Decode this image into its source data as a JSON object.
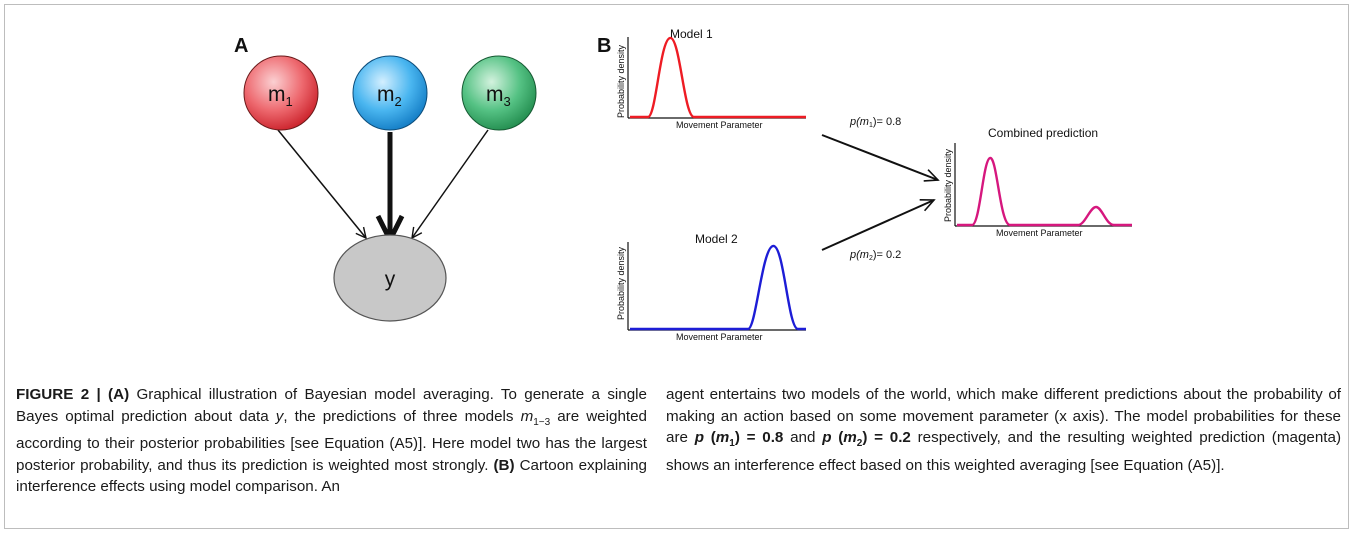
{
  "panel_a": {
    "label": "A",
    "nodes": [
      {
        "name": "m",
        "sub": "1",
        "color": "#e8414a"
      },
      {
        "name": "m",
        "sub": "2",
        "color": "#1ea1e8"
      },
      {
        "name": "m",
        "sub": "3",
        "color": "#2eaa63"
      }
    ],
    "target": "y",
    "target_color": "#c8c8c8"
  },
  "panel_b": {
    "label": "B",
    "model1": {
      "title": "Model 1",
      "ylabel": "Probability density",
      "xlabel": "Movement Parameter",
      "color": "#ee1c24"
    },
    "model2": {
      "title": "Model 2",
      "ylabel": "Probability density",
      "xlabel": "Movement Parameter",
      "color": "#1d1dd6"
    },
    "combined": {
      "title": "Combined prediction",
      "ylabel": "Probability density",
      "xlabel": "Movement Parameter",
      "color": "#d6177e"
    },
    "weight1": {
      "p": "p(m",
      "sub": "1",
      "rest": ")= 0.8"
    },
    "weight2": {
      "p": "p(m",
      "sub": "2",
      "rest": ")= 0.2"
    }
  },
  "caption": {
    "figure_label": "FIGURE 2 | ",
    "a_label": "(A)",
    "t1": " Graphical illustration of Bayesian model averaging. To generate a single Bayes optimal prediction about data ",
    "y": "y",
    "t2": ", the predictions of three models ",
    "m": "m",
    "m_sub": "1−3",
    "t3": " are weighted according to their posterior probabilities [see Equation (A5)]. Here model two has the largest posterior probability, and thus its prediction is weighted most strongly. ",
    "b_label": "(B)",
    "t4": " Cartoon explaining interference effects using model comparison. An",
    "t5": "agent entertains two models of the world, which make different predictions about the probability of making an action based on some movement parameter (x axis). The model probabilities for these are ",
    "eq1_p": "p",
    "eq1_m": "m",
    "eq1_sub": "1",
    "eq1_val": "0.8",
    "and": " and ",
    "eq2_p": "p",
    "eq2_m": "m",
    "eq2_sub": "2",
    "eq2_val": "0.2",
    "t6": " respectively, and the resulting weighted prediction (magenta) shows an interference effect based on this weighted averaging [see Equation (A5)]."
  }
}
